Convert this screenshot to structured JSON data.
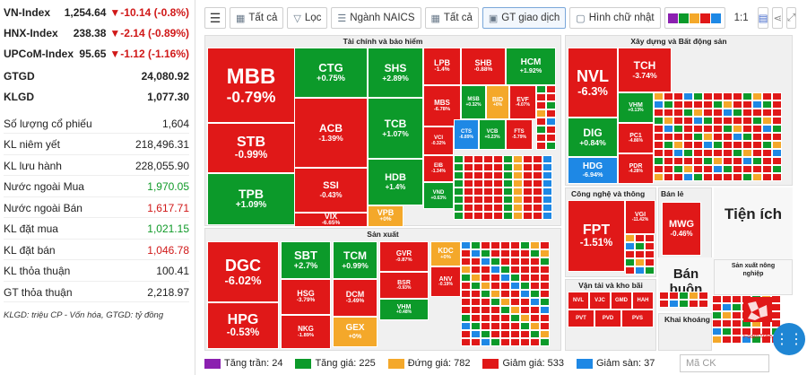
{
  "indexes": [
    {
      "name": "VN-Index",
      "value": "1,254.64",
      "change": "▼-10.14 (-0.8%)"
    },
    {
      "name": "HNX-Index",
      "value": "238.38",
      "change": "▼-2.14 (-0.89%)"
    },
    {
      "name": "UPCoM-Index",
      "value": "95.65",
      "change": "▼-1.12 (-1.16%)"
    }
  ],
  "totals": [
    {
      "label": "GTGD",
      "value": "24,080.92"
    },
    {
      "label": "KLGD",
      "value": "1,077.30"
    }
  ],
  "stats": [
    {
      "label": "Số lượng cổ phiếu",
      "value": "1,604",
      "color": ""
    },
    {
      "label": "KL niêm yết",
      "value": "218,496.31",
      "color": ""
    },
    {
      "label": "KL lưu hành",
      "value": "228,055.90",
      "color": ""
    },
    {
      "label": "Nước ngoài Mua",
      "value": "1,970.05",
      "color": "green"
    },
    {
      "label": "Nước ngoài Bán",
      "value": "1,617.71",
      "color": "red"
    },
    {
      "label": "KL đặt mua",
      "value": "1,021.15",
      "color": "green"
    },
    {
      "label": "KL đặt bán",
      "value": "1,046.78",
      "color": "red"
    },
    {
      "label": "KL thỏa thuận",
      "value": "100.41",
      "color": ""
    },
    {
      "label": "GT thỏa thuận",
      "value": "2,218.97",
      "color": ""
    }
  ],
  "footnote": "KLGD: triệu CP - Vốn hóa, GTGD: tỷ đồng",
  "toolbar": {
    "all1": "Tất cả",
    "filter": "Lọc",
    "naics": "Ngành NAICS",
    "all2": "Tất cả",
    "gt": "GT giao dịch",
    "rect": "Hình chữ nhật",
    "ratio": "1:1"
  },
  "palette": [
    "#8b20b0",
    "#0c9a2a",
    "#f4a82a",
    "#e01818",
    "#1e88e5"
  ],
  "sectors": {
    "fin": "Tài chính và bảo hiểm",
    "re": "Xây dựng và Bất động sản",
    "mfg": "Sản xuất",
    "it": "Công nghệ và thông tin",
    "retail": "Bán lẻ",
    "transport": "Vận tải và kho bãi",
    "mining": "Khai khoáng",
    "agri": "Sản xuất nông nghiệp"
  },
  "big_labels": {
    "utilities": "Tiện ích",
    "wholesale": "Bán buôn"
  },
  "tiles": [
    {
      "t": "MBB",
      "p": "-0.79%",
      "c": "cR"
    },
    {
      "t": "CTG",
      "p": "+0.75%",
      "c": "cG"
    },
    {
      "t": "SHS",
      "p": "+2.89%",
      "c": "cG"
    },
    {
      "t": "LPB",
      "p": "-1.4%",
      "c": "cR"
    },
    {
      "t": "SHB",
      "p": "-0.88%",
      "c": "cR"
    },
    {
      "t": "HCM",
      "p": "+1.92%",
      "c": "cG"
    },
    {
      "t": "ACB",
      "p": "-1.39%",
      "c": "cR"
    },
    {
      "t": "TCB",
      "p": "+1.07%",
      "c": "cG"
    },
    {
      "t": "MBS",
      "p": "-6.78%",
      "c": "cR"
    },
    {
      "t": "MSB",
      "p": "+0.32%",
      "c": "cG"
    },
    {
      "t": "BID",
      "p": "+0%",
      "c": "cY"
    },
    {
      "t": "EVF",
      "p": "-4.07%",
      "c": "cR"
    },
    {
      "t": "STB",
      "p": "-0.99%",
      "c": "cR"
    },
    {
      "t": "SSI",
      "p": "-0.43%",
      "c": "cR"
    },
    {
      "t": "HDB",
      "p": "+1.4%",
      "c": "cG"
    },
    {
      "t": "VCI",
      "p": "-0.32%",
      "c": "cR"
    },
    {
      "t": "CTS",
      "p": "-6.89%",
      "c": "cB"
    },
    {
      "t": "VCB",
      "p": "+0.23%",
      "c": "cG"
    },
    {
      "t": "FTS",
      "p": "-5.79%",
      "c": "cR"
    },
    {
      "t": "EIB",
      "p": "-1.34%",
      "c": "cR"
    },
    {
      "t": "TPB",
      "p": "+1.09%",
      "c": "cG"
    },
    {
      "t": "VIX",
      "p": "-6.65%",
      "c": "cR"
    },
    {
      "t": "VPB",
      "p": "+0%",
      "c": "cY"
    },
    {
      "t": "VND",
      "p": "+0.63%",
      "c": "cG"
    },
    {
      "t": "NVL",
      "p": "-6.3%",
      "c": "cR"
    },
    {
      "t": "TCH",
      "p": "-3.74%",
      "c": "cR"
    },
    {
      "t": "VHM",
      "p": "+0.13%",
      "c": "cG"
    },
    {
      "t": "DIG",
      "p": "+0.84%",
      "c": "cG"
    },
    {
      "t": "PC1",
      "p": "-4.86%",
      "c": "cR"
    },
    {
      "t": "HDG",
      "p": "-6.94%",
      "c": "cB"
    },
    {
      "t": "PDR",
      "p": "-4.28%",
      "c": "cR"
    },
    {
      "t": "DGC",
      "p": "-6.02%",
      "c": "cR"
    },
    {
      "t": "SBT",
      "p": "+2.7%",
      "c": "cG"
    },
    {
      "t": "TCM",
      "p": "+0.99%",
      "c": "cG"
    },
    {
      "t": "GVR",
      "p": "-0.87%",
      "c": "cR"
    },
    {
      "t": "KDC",
      "p": "+0%",
      "c": "cY"
    },
    {
      "t": "HSG",
      "p": "-3.79%",
      "c": "cR"
    },
    {
      "t": "DCM",
      "p": "-3.49%",
      "c": "cR"
    },
    {
      "t": "BSR",
      "p": "-0.93%",
      "c": "cR"
    },
    {
      "t": "ANV",
      "p": "-0.19%",
      "c": "cR"
    },
    {
      "t": "HPG",
      "p": "-0.53%",
      "c": "cR"
    },
    {
      "t": "NKG",
      "p": "-1.89%",
      "c": "cR"
    },
    {
      "t": "GEX",
      "p": "+0%",
      "c": "cY"
    },
    {
      "t": "VHM",
      "p": "+0.48%",
      "c": "cG"
    },
    {
      "t": "FPT",
      "p": "-1.51%",
      "c": "cR"
    },
    {
      "t": "VGI",
      "p": "-11.42%",
      "c": "cR"
    },
    {
      "t": "MWG",
      "p": "-0.46%",
      "c": "cR"
    },
    {
      "t": "NVL",
      "p": "",
      "c": "cR"
    },
    {
      "t": "VJC",
      "p": "",
      "c": "cR"
    },
    {
      "t": "GMD",
      "p": "",
      "c": "cR"
    },
    {
      "t": "HAH",
      "p": "",
      "c": "cR"
    },
    {
      "t": "PVT",
      "p": "",
      "c": "cR"
    },
    {
      "t": "PVD",
      "p": "",
      "c": "cR"
    },
    {
      "t": "PVS",
      "p": "",
      "c": "cR"
    }
  ],
  "legend": [
    {
      "label": "Tăng trần: 24",
      "color": "#8b20b0"
    },
    {
      "label": "Tăng giá: 225",
      "color": "#0c9a2a"
    },
    {
      "label": "Đứng giá: 782",
      "color": "#f4a82a"
    },
    {
      "label": "Giảm giá: 533",
      "color": "#e01818"
    },
    {
      "label": "Giảm sàn: 37",
      "color": "#1e88e5"
    }
  ],
  "search_placeholder": "Mã CK",
  "foamtree": "FoamTree"
}
